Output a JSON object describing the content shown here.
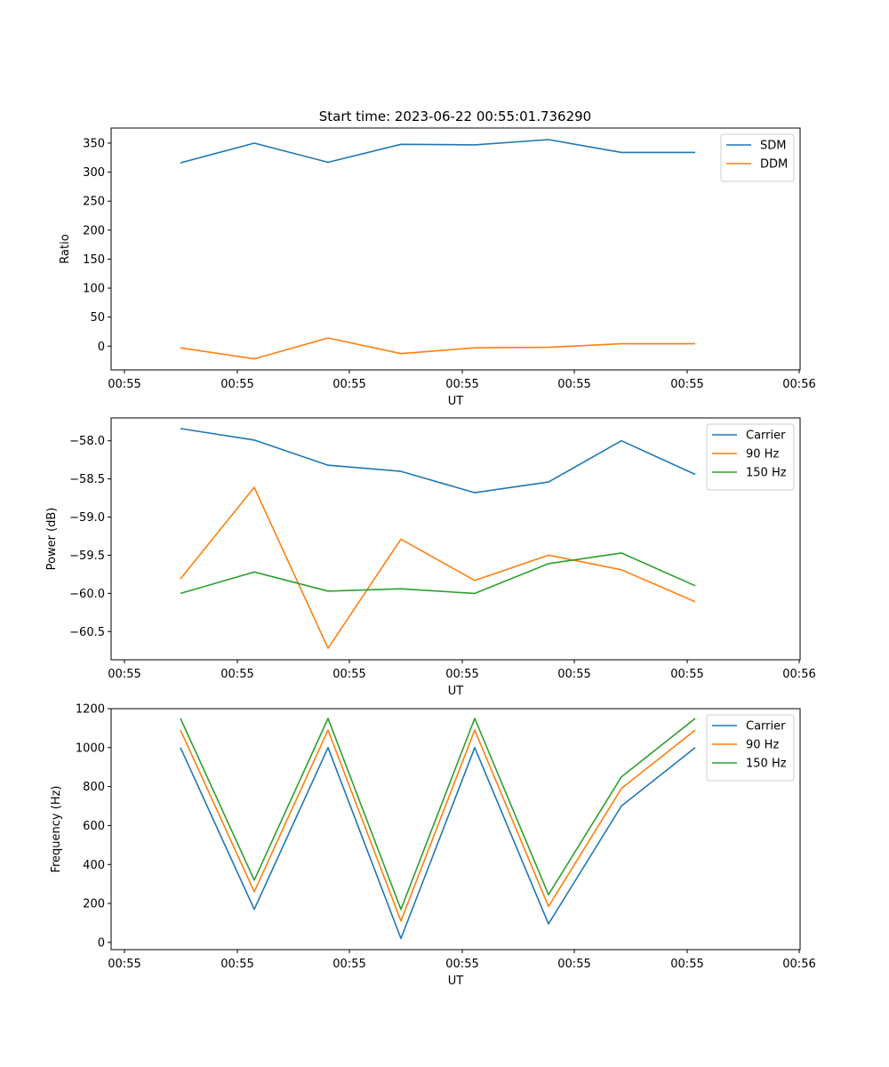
{
  "figure": {
    "title": "Start time: 2023-06-22 00:55:01.736290"
  },
  "chart_data": [
    {
      "type": "line",
      "xlabel": "UT",
      "ylabel": "Ratio",
      "x_tick_labels": [
        "00:55",
        "00:55",
        "00:55",
        "00:55",
        "00:55",
        "00:55",
        "00:56"
      ],
      "y_ticks": [
        0,
        50,
        100,
        150,
        200,
        250,
        300,
        350
      ],
      "ylim": [
        -41,
        376
      ],
      "legend_position": "top-right",
      "grid": false,
      "series": [
        {
          "name": "SDM",
          "color": "#1f77b4",
          "values": [
            316,
            350,
            317,
            348,
            347,
            356,
            334,
            334
          ]
        },
        {
          "name": "DDM",
          "color": "#ff7f0e",
          "values": [
            -3,
            -22,
            14,
            -13,
            -3,
            -2,
            4,
            4
          ]
        }
      ]
    },
    {
      "type": "line",
      "xlabel": "UT",
      "ylabel": "Power (dB)",
      "x_tick_labels": [
        "00:55",
        "00:55",
        "00:55",
        "00:55",
        "00:55",
        "00:55",
        "00:56"
      ],
      "y_ticks": [
        -58.0,
        -58.5,
        -59.0,
        -59.5,
        -60.0,
        -60.5
      ],
      "y_tick_labels": [
        "−58.0",
        "−58.5",
        "−59.0",
        "−59.5",
        "−60.0",
        "−60.5"
      ],
      "ylim": [
        -60.87,
        -57.7
      ],
      "legend_position": "top-right",
      "grid": false,
      "series": [
        {
          "name": "Carrier",
          "color": "#1f77b4",
          "values": [
            -57.84,
            -57.99,
            -58.32,
            -58.4,
            -58.68,
            -58.54,
            -58.0,
            -58.44
          ]
        },
        {
          "name": "90 Hz",
          "color": "#ff7f0e",
          "values": [
            -59.81,
            -58.61,
            -60.72,
            -59.29,
            -59.83,
            -59.5,
            -59.69,
            -60.11
          ]
        },
        {
          "name": "150 Hz",
          "color": "#2ca02c",
          "values": [
            -60.0,
            -59.72,
            -59.97,
            -59.94,
            -60.0,
            -59.61,
            -59.47,
            -59.9
          ]
        }
      ]
    },
    {
      "type": "line",
      "xlabel": "UT",
      "ylabel": "Frequency (Hz)",
      "x_tick_labels": [
        "00:55",
        "00:55",
        "00:55",
        "00:55",
        "00:55",
        "00:55",
        "00:56"
      ],
      "y_ticks": [
        0,
        200,
        400,
        600,
        800,
        1000,
        1200
      ],
      "ylim": [
        -37,
        1200
      ],
      "legend_position": "top-right",
      "grid": false,
      "series": [
        {
          "name": "Carrier",
          "color": "#1f77b4",
          "values": [
            1000,
            170,
            1000,
            20,
            1000,
            95,
            700,
            1000
          ]
        },
        {
          "name": "90 Hz",
          "color": "#ff7f0e",
          "values": [
            1090,
            260,
            1090,
            110,
            1090,
            185,
            790,
            1090
          ]
        },
        {
          "name": "150 Hz",
          "color": "#2ca02c",
          "values": [
            1150,
            320,
            1150,
            170,
            1150,
            245,
            850,
            1150
          ]
        }
      ]
    }
  ]
}
